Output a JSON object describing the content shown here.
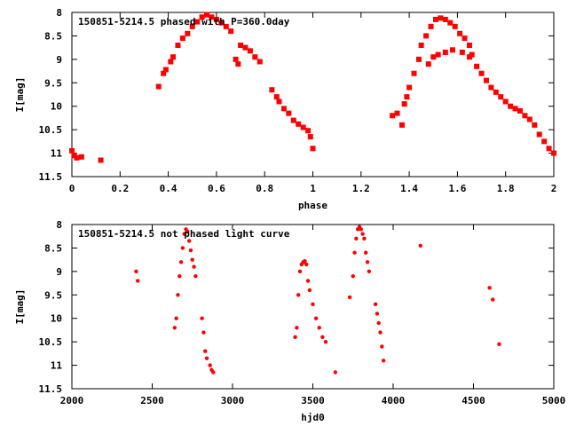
{
  "chart_data": [
    {
      "type": "scatter",
      "title": "150851-5214.5 phased with P=360.0day",
      "xlabel": "phase",
      "ylabel": "I[mag]",
      "xlim": [
        0,
        2
      ],
      "ylim": [
        11.5,
        8
      ],
      "y_inverted": true,
      "grid": false,
      "x_ticks": [
        "0",
        "0.2",
        "0.4",
        "0.6",
        "0.8",
        "1",
        "1.2",
        "1.4",
        "1.6",
        "1.8",
        "2"
      ],
      "y_ticks": [
        "8",
        "8.5",
        "9",
        "9.5",
        "10",
        "10.5",
        "11",
        "11.5"
      ],
      "series": [
        {
          "color": "#ff0000",
          "marker": "filled-square-cluster",
          "points": [
            [
              0.0,
              10.95
            ],
            [
              0.01,
              11.05
            ],
            [
              0.02,
              11.1
            ],
            [
              0.04,
              11.08
            ],
            [
              0.12,
              11.15
            ],
            [
              0.36,
              9.58
            ],
            [
              0.38,
              9.3
            ],
            [
              0.39,
              9.22
            ],
            [
              0.41,
              9.05
            ],
            [
              0.42,
              8.95
            ],
            [
              0.44,
              8.7
            ],
            [
              0.46,
              8.55
            ],
            [
              0.48,
              8.45
            ],
            [
              0.5,
              8.3
            ],
            [
              0.52,
              8.2
            ],
            [
              0.54,
              8.1
            ],
            [
              0.56,
              8.05
            ],
            [
              0.58,
              8.1
            ],
            [
              0.6,
              8.15
            ],
            [
              0.62,
              8.22
            ],
            [
              0.64,
              8.3
            ],
            [
              0.66,
              8.4
            ],
            [
              0.68,
              9.0
            ],
            [
              0.69,
              9.1
            ],
            [
              0.7,
              8.7
            ],
            [
              0.72,
              8.75
            ],
            [
              0.74,
              8.82
            ],
            [
              0.76,
              8.95
            ],
            [
              0.78,
              9.05
            ],
            [
              0.83,
              9.65
            ],
            [
              0.85,
              9.8
            ],
            [
              0.86,
              9.9
            ],
            [
              0.88,
              10.05
            ],
            [
              0.9,
              10.15
            ],
            [
              0.92,
              10.3
            ],
            [
              0.94,
              10.38
            ],
            [
              0.96,
              10.45
            ],
            [
              0.98,
              10.52
            ],
            [
              0.99,
              10.65
            ],
            [
              1.0,
              10.9
            ],
            [
              1.33,
              10.2
            ],
            [
              1.35,
              10.15
            ],
            [
              1.37,
              10.4
            ],
            [
              1.38,
              9.95
            ],
            [
              1.39,
              9.8
            ],
            [
              1.4,
              9.6
            ],
            [
              1.42,
              9.3
            ],
            [
              1.44,
              9.0
            ],
            [
              1.45,
              8.7
            ],
            [
              1.47,
              8.5
            ],
            [
              1.49,
              8.3
            ],
            [
              1.51,
              8.15
            ],
            [
              1.53,
              8.12
            ],
            [
              1.55,
              8.15
            ],
            [
              1.57,
              8.22
            ],
            [
              1.59,
              8.3
            ],
            [
              1.61,
              8.45
            ],
            [
              1.63,
              8.55
            ],
            [
              1.65,
              8.7
            ],
            [
              1.66,
              8.9
            ],
            [
              1.48,
              9.1
            ],
            [
              1.5,
              8.95
            ],
            [
              1.52,
              8.9
            ],
            [
              1.55,
              8.85
            ],
            [
              1.58,
              8.8
            ],
            [
              1.62,
              8.85
            ],
            [
              1.65,
              8.95
            ],
            [
              1.68,
              9.15
            ],
            [
              1.7,
              9.3
            ],
            [
              1.72,
              9.45
            ],
            [
              1.74,
              9.6
            ],
            [
              1.76,
              9.7
            ],
            [
              1.78,
              9.8
            ],
            [
              1.8,
              9.9
            ],
            [
              1.82,
              10.0
            ],
            [
              1.84,
              10.05
            ],
            [
              1.86,
              10.1
            ],
            [
              1.88,
              10.2
            ],
            [
              1.9,
              10.28
            ],
            [
              1.92,
              10.4
            ],
            [
              1.94,
              10.6
            ],
            [
              1.96,
              10.75
            ],
            [
              1.98,
              10.9
            ],
            [
              2.0,
              11.0
            ]
          ]
        }
      ]
    },
    {
      "type": "scatter",
      "title": "150851-5214.5 not phased light curve",
      "xlabel": "hjd0",
      "ylabel": "I[mag]",
      "xlim": [
        2000,
        5000
      ],
      "ylim": [
        11.5,
        8
      ],
      "y_inverted": true,
      "grid": false,
      "x_ticks": [
        "2000",
        "2500",
        "3000",
        "3500",
        "4000",
        "4500",
        "5000"
      ],
      "y_ticks": [
        "8",
        "8.5",
        "9",
        "9.5",
        "10",
        "10.5",
        "11",
        "11.5"
      ],
      "series": [
        {
          "color": "#ff0000",
          "marker": "small-filled-circle",
          "points": [
            [
              2400,
              9.0
            ],
            [
              2410,
              9.2
            ],
            [
              2640,
              10.2
            ],
            [
              2650,
              10.0
            ],
            [
              2660,
              9.5
            ],
            [
              2670,
              9.1
            ],
            [
              2680,
              8.8
            ],
            [
              2690,
              8.5
            ],
            [
              2700,
              8.2
            ],
            [
              2710,
              8.1
            ],
            [
              2720,
              8.15
            ],
            [
              2730,
              8.35
            ],
            [
              2740,
              8.55
            ],
            [
              2750,
              8.75
            ],
            [
              2760,
              8.9
            ],
            [
              2770,
              9.1
            ],
            [
              2810,
              10.0
            ],
            [
              2820,
              10.3
            ],
            [
              2830,
              10.7
            ],
            [
              2840,
              10.85
            ],
            [
              2860,
              11.0
            ],
            [
              2870,
              11.1
            ],
            [
              2880,
              11.15
            ],
            [
              3390,
              10.4
            ],
            [
              3400,
              10.2
            ],
            [
              3410,
              9.5
            ],
            [
              3420,
              9.0
            ],
            [
              3430,
              8.85
            ],
            [
              3440,
              8.8
            ],
            [
              3450,
              8.78
            ],
            [
              3460,
              8.85
            ],
            [
              3470,
              9.2
            ],
            [
              3480,
              9.4
            ],
            [
              3500,
              9.7
            ],
            [
              3520,
              10.0
            ],
            [
              3540,
              10.2
            ],
            [
              3560,
              10.4
            ],
            [
              3580,
              10.5
            ],
            [
              3640,
              11.15
            ],
            [
              3730,
              9.55
            ],
            [
              3750,
              9.1
            ],
            [
              3760,
              8.6
            ],
            [
              3770,
              8.3
            ],
            [
              3780,
              8.1
            ],
            [
              3790,
              8.05
            ],
            [
              3800,
              8.1
            ],
            [
              3810,
              8.2
            ],
            [
              3820,
              8.3
            ],
            [
              3830,
              8.6
            ],
            [
              3840,
              8.8
            ],
            [
              3850,
              9.0
            ],
            [
              3890,
              9.7
            ],
            [
              3900,
              9.9
            ],
            [
              3910,
              10.1
            ],
            [
              3920,
              10.3
            ],
            [
              3930,
              10.6
            ],
            [
              3940,
              10.9
            ],
            [
              4170,
              8.45
            ],
            [
              4600,
              9.35
            ],
            [
              4620,
              9.6
            ],
            [
              4660,
              10.55
            ]
          ]
        }
      ]
    }
  ]
}
